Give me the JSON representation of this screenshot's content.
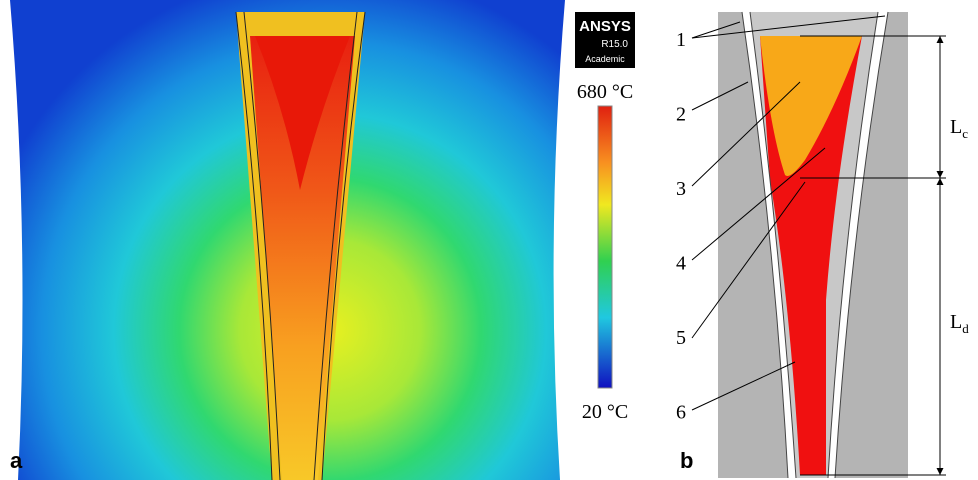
{
  "panel_a": {
    "label": "a",
    "logo": {
      "name": "ANSYS",
      "version": "R15.0",
      "edition": "Academic"
    },
    "legend": {
      "max_label": "680 °C",
      "min_label": "20 °C"
    }
  },
  "panel_b": {
    "label": "b",
    "callouts": [
      "1",
      "2",
      "3",
      "4",
      "5",
      "6"
    ],
    "dimensions": [
      {
        "symbol": "L",
        "subscript": "c"
      },
      {
        "symbol": "L",
        "subscript": "d"
      }
    ]
  }
}
